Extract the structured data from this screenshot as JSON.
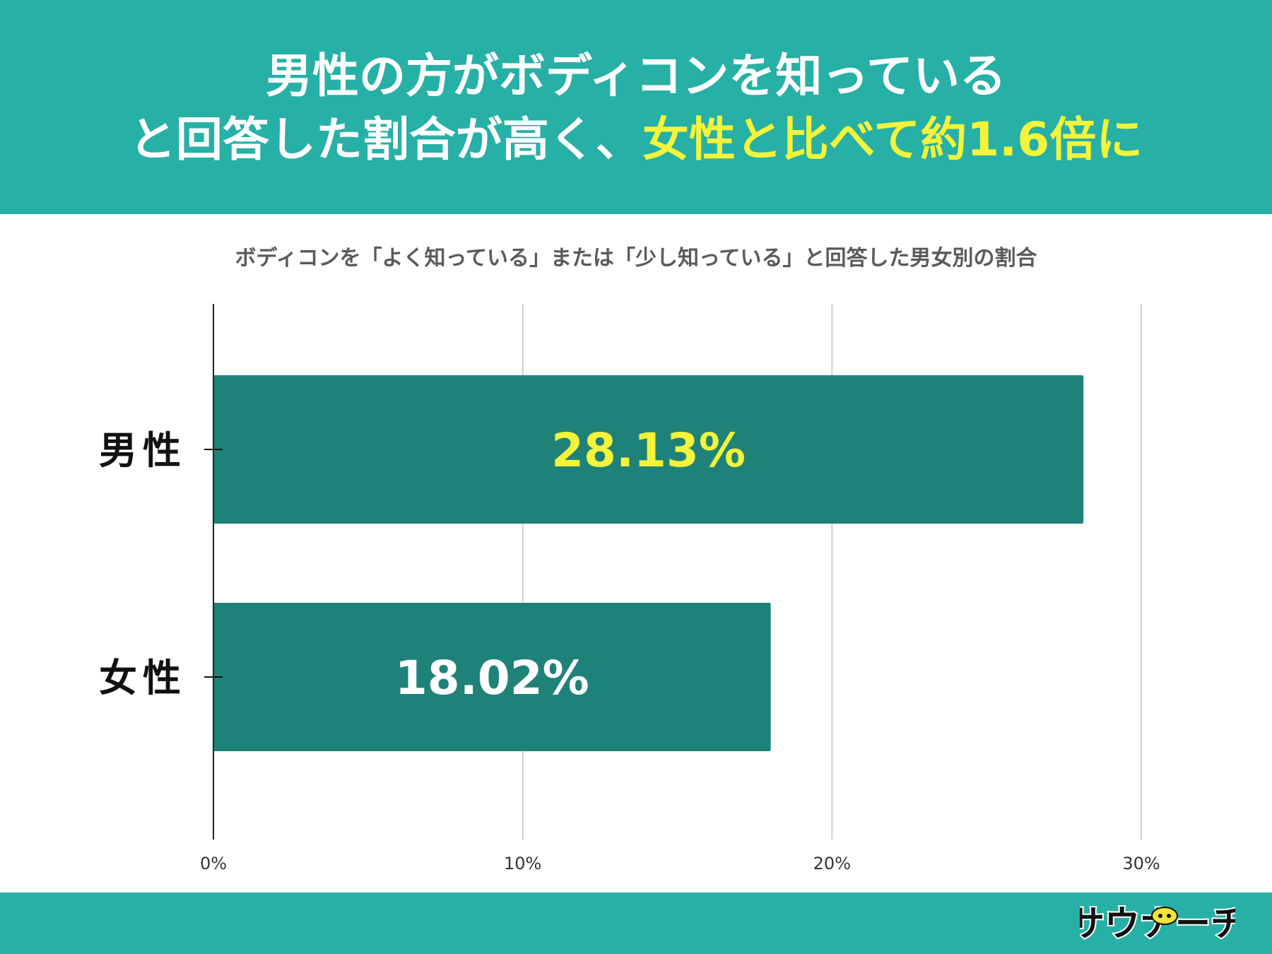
{
  "header": {
    "line1": "男性の方がボディコンを知っている",
    "line2_part1": "と回答した割合が高く、",
    "line2_part2": "女性と比べて約1.6倍に"
  },
  "chart_data": {
    "type": "bar",
    "orientation": "horizontal",
    "title": "ボディコンを「よく知っている」または「少し知っている」と回答した男女別の割合",
    "categories": [
      "男性",
      "女性"
    ],
    "values": [
      28.13,
      18.02
    ],
    "data_labels": [
      "28.13%",
      "18.02%"
    ],
    "xlim": [
      0,
      30
    ],
    "x_ticks": [
      0,
      10,
      20,
      30
    ],
    "x_tick_labels": [
      "0%",
      "10%",
      "20%",
      "30%"
    ],
    "grid": true,
    "colors": {
      "bar": "#1f8279",
      "label_highlight": "#f4f43a",
      "label_default": "#ffffff"
    }
  },
  "brand": {
    "logo_text": "サウナーチ"
  }
}
